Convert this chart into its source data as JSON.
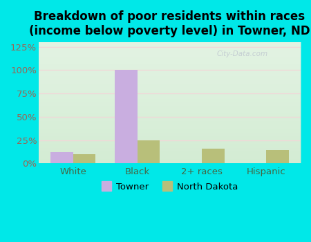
{
  "title": "Breakdown of poor residents within races\n(income below poverty level) in Towner, ND",
  "categories": [
    "White",
    "Black",
    "2+ races",
    "Hispanic"
  ],
  "towner_values": [
    12,
    100,
    0,
    0
  ],
  "nd_values": [
    10,
    25,
    16,
    14
  ],
  "towner_color": "#c9aee0",
  "nd_color": "#b8bf7a",
  "bar_width": 0.35,
  "ylim": [
    0,
    130
  ],
  "yticks": [
    0,
    25,
    50,
    75,
    100,
    125
  ],
  "ytick_labels": [
    "0%",
    "25%",
    "50%",
    "75%",
    "100%",
    "125%"
  ],
  "background_outer": "#00e8e8",
  "background_inner_top": "#e8f5e8",
  "background_inner_bottom": "#d0ebd0",
  "grid_color": "#f0d8d8",
  "ytick_color": "#996655",
  "xtick_color": "#446644",
  "title_fontsize": 12,
  "legend_labels": [
    "Towner",
    "North Dakota"
  ],
  "watermark": "City-Data.com"
}
